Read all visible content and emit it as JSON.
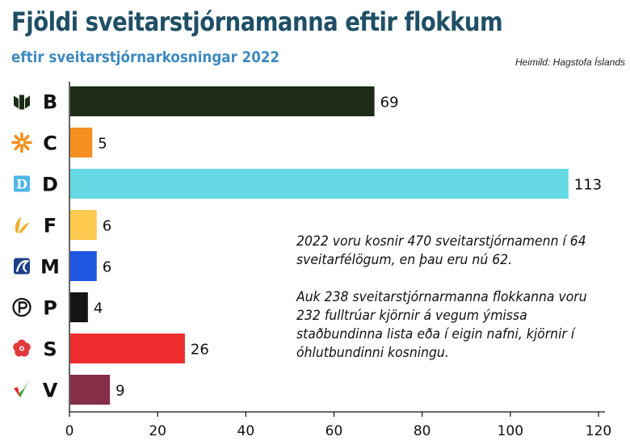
{
  "title": "Fjöldi sveitarstjórnamanna eftir flokkum",
  "subtitle": "eftir sveitarstjórnarkosningar 2022",
  "source": "Heimild: Hagstofa Íslands",
  "annotation": {
    "paragraph1": "2022 voru kosnir 470 sveitarstjórnamenn í 64 sveitarfélögum, en þau eru nú 62.",
    "paragraph2": "Auk 238 sveitarstjórnarmanna flokkanna voru 232 fulltrúar kjörnir á vegum ýmissa staðbundinna lista eða í eigin nafni, kjörnir í óhlutbundinni kosningu."
  },
  "chart_data": {
    "type": "bar",
    "orientation": "horizontal",
    "categories": [
      "B",
      "C",
      "D",
      "F",
      "M",
      "P",
      "S",
      "V"
    ],
    "values": [
      69,
      5,
      113,
      6,
      6,
      4,
      26,
      9
    ],
    "colors": [
      "#1d2b17",
      "#f39020",
      "#64d9e3",
      "#fdc94f",
      "#1e56e0",
      "#151515",
      "#ef2d2f",
      "#862e48"
    ],
    "icons": [
      "b-logo-icon",
      "c-logo-icon",
      "d-logo-icon",
      "f-logo-icon",
      "m-logo-icon",
      "p-logo-icon",
      "s-logo-icon",
      "v-logo-icon"
    ],
    "xlim": [
      0,
      120
    ],
    "xticks": [
      0,
      20,
      40,
      60,
      80,
      100,
      120
    ],
    "grid": false
  }
}
